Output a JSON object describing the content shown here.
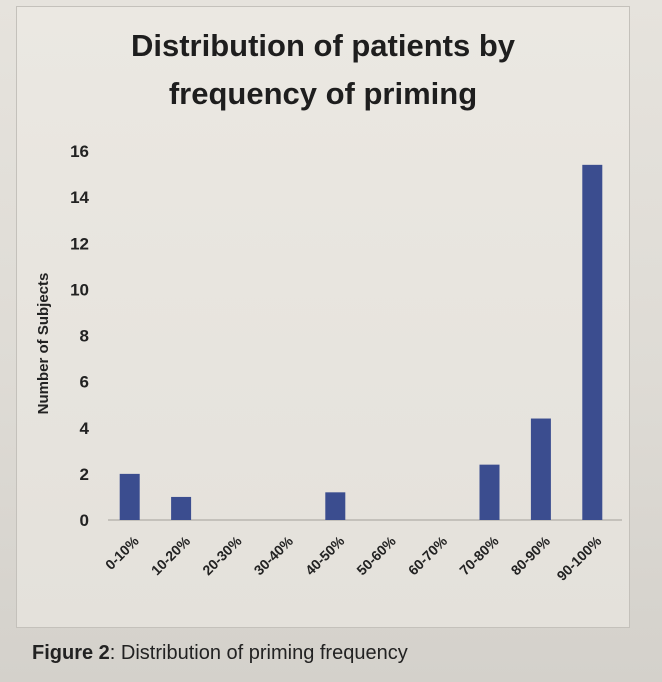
{
  "chart_data": {
    "type": "bar",
    "title_line1": "Distribution of patients by",
    "title_line2": "frequency of priming",
    "ylabel": "Number of Subjects",
    "xlabel": "",
    "ylim": [
      0,
      16
    ],
    "yticks": [
      0,
      2,
      4,
      6,
      8,
      10,
      12,
      14,
      16
    ],
    "categories": [
      "0-10%",
      "10-20%",
      "20-30%",
      "30-40%",
      "40-50%",
      "50-60%",
      "60-70%",
      "70-80%",
      "80-90%",
      "90-100%"
    ],
    "values": [
      2,
      1,
      0,
      0,
      1.2,
      0,
      0,
      2.4,
      4.4,
      15.4
    ],
    "bar_color": "#3b4d8f",
    "grid": false
  },
  "caption": {
    "label": "Figure 2",
    "text": ": Distribution of priming frequency"
  }
}
